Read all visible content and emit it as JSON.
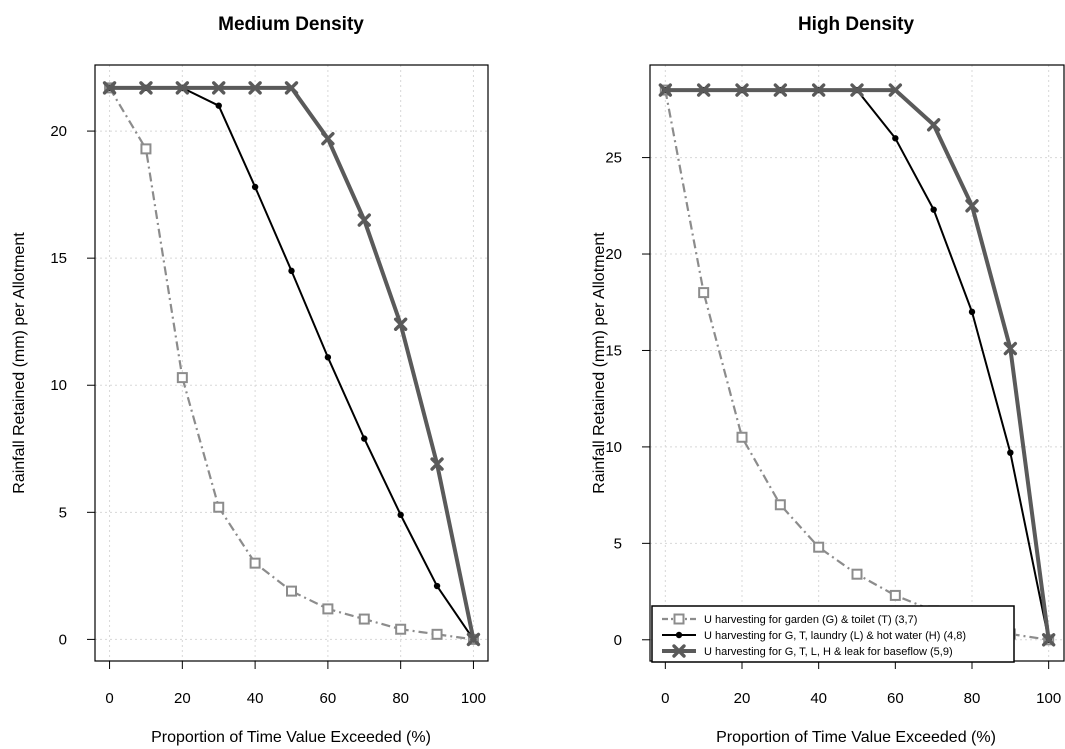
{
  "figure": {
    "panels": [
      {
        "title": "Medium Density",
        "xlabel": "Proportion of Time Value Exceeded (%)",
        "ylabel": "Rainfall Retained (mm) per Allotment"
      },
      {
        "title": "High Density",
        "xlabel": "Proportion of Time Value Exceeded (%)",
        "ylabel": "Rainfall Retained (mm) per Allotment"
      }
    ]
  },
  "chart_data": [
    {
      "type": "line",
      "title": "Medium Density",
      "xlabel": "Proportion of Time Value Exceeded (%)",
      "ylabel": "Rainfall Retained (mm) per Allotment",
      "x": [
        0,
        10,
        20,
        30,
        40,
        50,
        60,
        70,
        80,
        90,
        100
      ],
      "xticks": [
        0,
        20,
        40,
        60,
        80,
        100
      ],
      "yticks": [
        0,
        5,
        10,
        15,
        20
      ],
      "xlim": [
        -4,
        104
      ],
      "ylim": [
        -0.85,
        22.6
      ],
      "grid": true,
      "series": [
        {
          "name": "U harvesting for garden (G) & toilet (T) (3,7)",
          "values": [
            21.7,
            19.3,
            10.3,
            5.2,
            3.0,
            1.9,
            1.2,
            0.8,
            0.4,
            0.2,
            0.0
          ],
          "color": "#8c8c8c",
          "marker": "square",
          "linestyle": "dashdot"
        },
        {
          "name": "U harvesting for G, T, laundry (L) & hot water (H) (4,8)",
          "values": [
            21.7,
            21.7,
            21.7,
            21.0,
            17.8,
            14.5,
            11.1,
            7.9,
            4.9,
            2.1,
            0.0
          ],
          "color": "#000000",
          "marker": "dot",
          "linestyle": "solid"
        },
        {
          "name": "U harvesting for G, T, L, H & leak for baseflow (5,9)",
          "values": [
            21.7,
            21.7,
            21.7,
            21.7,
            21.7,
            21.7,
            19.7,
            16.5,
            12.4,
            6.9,
            0.0
          ],
          "color": "#5a5a5a",
          "marker": "x",
          "linestyle": "solid"
        }
      ]
    },
    {
      "type": "line",
      "title": "High Density",
      "xlabel": "Proportion of Time Value Exceeded (%)",
      "ylabel": "Rainfall Retained (mm) per Allotment",
      "x": [
        0,
        10,
        20,
        30,
        40,
        50,
        60,
        70,
        80,
        90,
        100
      ],
      "xticks": [
        0,
        20,
        40,
        60,
        80,
        100
      ],
      "yticks": [
        0,
        5,
        10,
        15,
        20,
        25
      ],
      "xlim": [
        -4,
        104
      ],
      "ylim": [
        -1.1,
        29.8
      ],
      "grid": true,
      "legend": "bottom-left",
      "series": [
        {
          "name": "U harvesting for garden (G) & toilet (T) (3,7)",
          "values": [
            28.5,
            18.0,
            10.5,
            7.0,
            4.8,
            3.4,
            2.3,
            1.5,
            0.9,
            0.3,
            0.0
          ],
          "color": "#8c8c8c",
          "marker": "square",
          "linestyle": "dashdot"
        },
        {
          "name": "U harvesting for G, T, laundry (L) & hot water (H) (4,8)",
          "values": [
            28.5,
            28.5,
            28.5,
            28.5,
            28.5,
            28.5,
            26.0,
            22.3,
            17.0,
            9.7,
            0.0
          ],
          "color": "#000000",
          "marker": "dot",
          "linestyle": "solid"
        },
        {
          "name": "U harvesting for G, T, L, H & leak for baseflow (5,9)",
          "values": [
            28.5,
            28.5,
            28.5,
            28.5,
            28.5,
            28.5,
            28.5,
            26.7,
            22.5,
            15.1,
            0.0
          ],
          "color": "#5a5a5a",
          "marker": "x",
          "linestyle": "solid"
        }
      ]
    }
  ]
}
